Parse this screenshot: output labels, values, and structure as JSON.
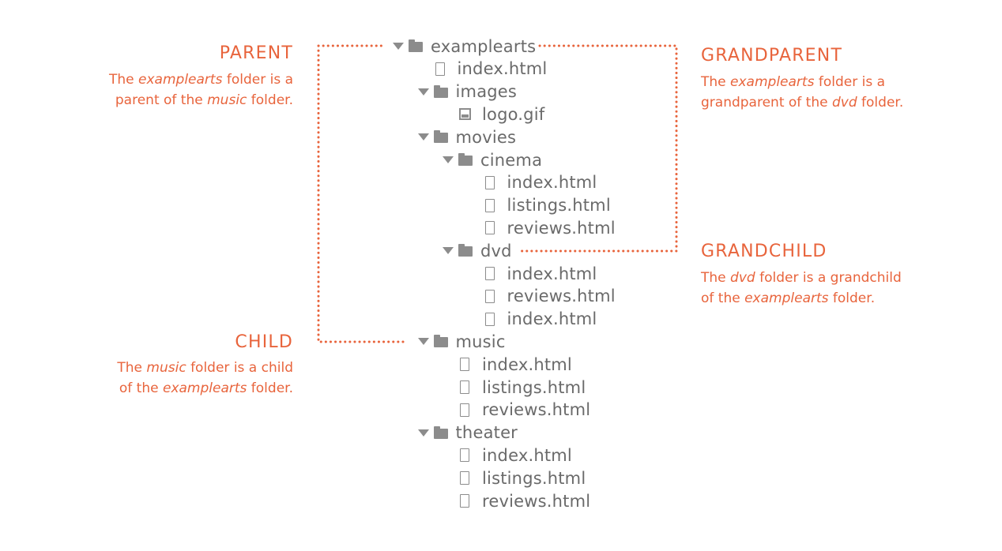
{
  "colors": {
    "accent": "#e8643c",
    "tree_text": "#6a6a6a",
    "icon": "#8c8c8c"
  },
  "tree": [
    {
      "label": "examplearts",
      "type": "folder",
      "depth": 0
    },
    {
      "label": "index.html",
      "type": "file",
      "depth": 1
    },
    {
      "label": "images",
      "type": "folder",
      "depth": 1
    },
    {
      "label": "logo.gif",
      "type": "image",
      "depth": 2
    },
    {
      "label": "movies",
      "type": "folder",
      "depth": 1
    },
    {
      "label": "cinema",
      "type": "folder",
      "depth": 2
    },
    {
      "label": "index.html",
      "type": "file",
      "depth": 3
    },
    {
      "label": "listings.html",
      "type": "file",
      "depth": 3
    },
    {
      "label": "reviews.html",
      "type": "file",
      "depth": 3
    },
    {
      "label": "dvd",
      "type": "folder",
      "depth": 2
    },
    {
      "label": "index.html",
      "type": "file",
      "depth": 3
    },
    {
      "label": "reviews.html",
      "type": "file",
      "depth": 3
    },
    {
      "label": "index.html",
      "type": "file",
      "depth": 3
    },
    {
      "label": "music",
      "type": "folder",
      "depth": 1
    },
    {
      "label": "index.html",
      "type": "file",
      "depth": 2
    },
    {
      "label": "listings.html",
      "type": "file",
      "depth": 2
    },
    {
      "label": "reviews.html",
      "type": "file",
      "depth": 2
    },
    {
      "label": "theater",
      "type": "folder",
      "depth": 1
    },
    {
      "label": "index.html",
      "type": "file",
      "depth": 2
    },
    {
      "label": "listings.html",
      "type": "file",
      "depth": 2
    },
    {
      "label": "reviews.html",
      "type": "file",
      "depth": 2
    }
  ],
  "annotations": {
    "parent": {
      "title": "PARENT",
      "line1": [
        "The ",
        "examplearts",
        " folder is a"
      ],
      "line2": [
        "parent of the ",
        "music",
        " folder."
      ]
    },
    "grandparent": {
      "title": "GRANDPARENT",
      "line1": [
        "The ",
        "examplearts",
        " folder is a"
      ],
      "line2": [
        "grandparent of the ",
        "dvd",
        " folder."
      ]
    },
    "grandchild": {
      "title": "GRANDCHILD",
      "line1": [
        "The ",
        "dvd",
        " folder is a grandchild"
      ],
      "line2": [
        "of the ",
        "examplearts",
        " folder."
      ]
    },
    "child": {
      "title": "CHILD",
      "line1": [
        "The ",
        "music",
        " folder is a child"
      ],
      "line2": [
        "of the ",
        "examplearts",
        " folder."
      ]
    }
  }
}
